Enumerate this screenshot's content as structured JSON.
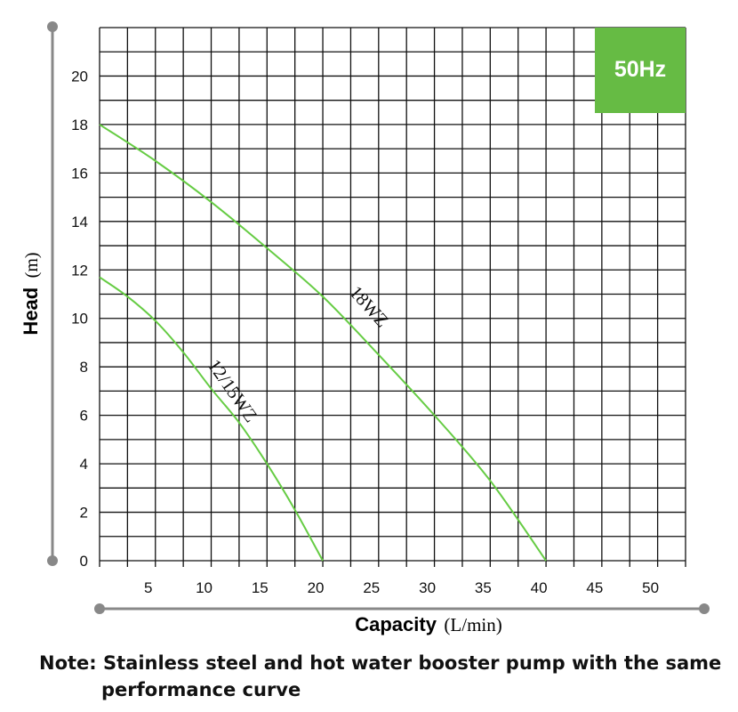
{
  "chart_data": {
    "type": "line",
    "badge": "50Hz",
    "ylabel_main": "Head",
    "ylabel_unit": "(m)",
    "xlabel_main": "Capacity",
    "xlabel_unit": "(L/min)",
    "xlim": [
      0,
      52.5
    ],
    "ylim": [
      0,
      22
    ],
    "x_ticks": [
      5,
      10,
      15,
      20,
      25,
      30,
      35,
      40,
      45,
      50
    ],
    "y_ticks": [
      0,
      2,
      4,
      6,
      8,
      10,
      12,
      14,
      16,
      18,
      20
    ],
    "grid": true,
    "series": [
      {
        "name": "18WZ",
        "color": "#66cc44",
        "x": [
          0,
          5,
          10,
          15,
          20,
          25,
          30,
          35,
          40
        ],
        "y": [
          18,
          16.5,
          14.8,
          12.9,
          10.9,
          8.5,
          6,
          3.3,
          0
        ]
      },
      {
        "name": "12/15WZ",
        "color": "#66cc44",
        "x": [
          0,
          2.5,
          5,
          7.5,
          10,
          12.5,
          15,
          17.5,
          20
        ],
        "y": [
          11.7,
          10.9,
          9.9,
          8.6,
          7.1,
          5.7,
          4,
          2.1,
          0
        ]
      }
    ],
    "badge_color": "#66bb44"
  },
  "note": {
    "line1": "Note: Stainless steel and hot water booster pump with the same",
    "line2": "performance curve"
  }
}
